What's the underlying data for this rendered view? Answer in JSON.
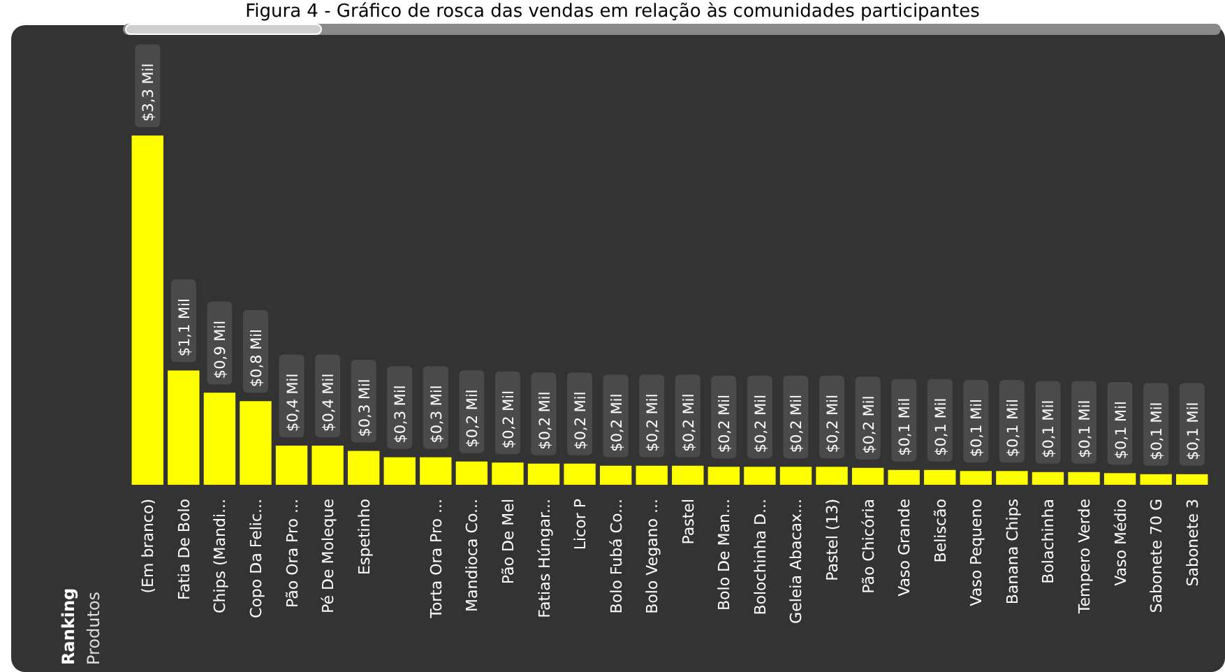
{
  "chart_data": {
    "type": "bar",
    "title": "Figura 4 - Gráfico de rosca das vendas em relação às comunidades participantes",
    "annotations": [
      "Ranking",
      "Produtos"
    ],
    "categories": [
      "(Em branco)",
      "Fatia De Bolo",
      "Chips (Mandi...",
      "Copo Da Felic...",
      "Pão Ora Pro ...",
      "Pé De Moleque",
      "Espetinho",
      null,
      "Torta Ora Pro ...",
      "Mandioca Co...",
      "Pão De Mel",
      "Fatias Húngar...",
      "Licor P",
      "Bolo Fubá Co...",
      "Bolo Vegano ...",
      "Pastel",
      "Bolo De Man...",
      "Bolochinha D...",
      "Geleia Abacax...",
      "Pastel (13)",
      "Pão Chicória",
      "Vaso Grande",
      "Beliscão",
      "Vaso Pequeno",
      "Banana Chips",
      "Bolachinha",
      "Tempero Verde",
      "Vaso Médio",
      "Sabonete 70 G",
      "Sabonete 3"
    ],
    "values": [
      3.3,
      1.08,
      0.87,
      0.79,
      0.37,
      0.37,
      0.32,
      0.26,
      0.26,
      0.22,
      0.21,
      0.2,
      0.2,
      0.18,
      0.18,
      0.18,
      0.17,
      0.17,
      0.17,
      0.17,
      0.16,
      0.14,
      0.14,
      0.13,
      0.13,
      0.12,
      0.12,
      0.11,
      0.1,
      0.1
    ],
    "value_labels": [
      "$3,3 Mil",
      "$1,1 Mil",
      "$0,9 Mil",
      "$0,8 Mil",
      "$0,4 Mil",
      "$0,4 Mil",
      "$0,3 Mil",
      "$0,3 Mil",
      "$0,3 Mil",
      "$0,2 Mil",
      "$0,2 Mil",
      "$0,2 Mil",
      "$0,2 Mil",
      "$0,2 Mil",
      "$0,2 Mil",
      "$0,2 Mil",
      "$0,2 Mil",
      "$0,2 Mil",
      "$0,2 Mil",
      "$0,2 Mil",
      "$0,2 Mil",
      "$0,1 Mil",
      "$0,1 Mil",
      "$0,1 Mil",
      "$0,1 Mil",
      "$0,1 Mil",
      "$0,1 Mil",
      "$0,1 Mil",
      "$0,1 Mil",
      "$0,1 Mil"
    ],
    "color": "#ffff00"
  }
}
